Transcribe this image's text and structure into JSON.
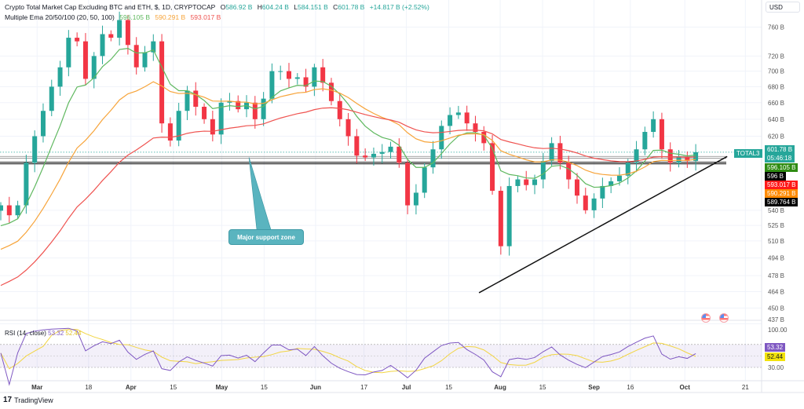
{
  "header": {
    "symbol_title": "Crypto Total Market Cap Excluding BTC and ETH, $, 1D, CRYPTOCAP",
    "ohlc": [
      {
        "label": "O",
        "value": "586.92 B"
      },
      {
        "label": "H",
        "value": "604.24 B"
      },
      {
        "label": "L",
        "value": "584.151 B"
      },
      {
        "label": "C",
        "value": "601.78 B"
      }
    ],
    "change": "+14.817 B (+2.52%)",
    "indicator_title": "Multiple Ema 20/50/100 (20, 50, 100)",
    "ema_values": [
      "596.105 B",
      "590.291 B",
      "593.017 B"
    ]
  },
  "axis": {
    "currency": "USD",
    "price_ticks": [
      "760 B",
      "720 B",
      "700 B",
      "680 B",
      "660 B",
      "640 B",
      "620 B",
      "540 B",
      "525 B",
      "510 B",
      "494 B",
      "478 B",
      "464 B",
      "450 B",
      "437 B"
    ],
    "price_tick_values": [
      760,
      720,
      700,
      680,
      660,
      640,
      620,
      540,
      525,
      510,
      494,
      478,
      464,
      450,
      437
    ],
    "rsi_ticks": [
      "100.00",
      "30.00"
    ],
    "date_labels": [
      {
        "label": "Mar",
        "day": 12,
        "bold": true
      },
      {
        "label": "18",
        "day": 29
      },
      {
        "label": "Apr",
        "day": 43,
        "bold": true
      },
      {
        "label": "15",
        "day": 57
      },
      {
        "label": "May",
        "day": 73,
        "bold": true
      },
      {
        "label": "15",
        "day": 87
      },
      {
        "label": "Jun",
        "day": 104,
        "bold": true
      },
      {
        "label": "17",
        "day": 120
      },
      {
        "label": "Jul",
        "day": 134,
        "bold": true
      },
      {
        "label": "15",
        "day": 148
      },
      {
        "label": "Aug",
        "day": 165,
        "bold": true
      },
      {
        "label": "15",
        "day": 179
      },
      {
        "label": "Sep",
        "day": 196,
        "bold": true
      },
      {
        "label": "16",
        "day": 208
      },
      {
        "label": "Oct",
        "day": 226,
        "bold": true
      },
      {
        "label": "21",
        "day": 246
      }
    ]
  },
  "price_badges": {
    "symbol": "TOTAL3",
    "last": "601.78 B",
    "countdown": "05:46:18",
    "ema20": "596.105 B",
    "hline_upper": "596 B",
    "ema100": "593.017 B",
    "ema50": "590.291 B",
    "hline_lower": "589.764 B",
    "rsi": "53.32",
    "rsi_ma": "52.44"
  },
  "annotation": {
    "text": "Major support zone"
  },
  "rsi_legend": {
    "title": "RSI (14, close)",
    "rsi": "53.32",
    "ma": "52.44"
  },
  "brand": "TradingView",
  "colors": {
    "up": "#26a69a",
    "down": "#f23645",
    "ema20": "#5fb85f",
    "ema50": "#f7a43a",
    "ema100": "#ef5350",
    "rsi": "#7e57c2",
    "rsi_ma": "#f2d543"
  },
  "chart_data": {
    "type": "candlestick",
    "title": "Crypto Total Market Cap Excluding BTC and ETH (TOTAL3), 1D",
    "ylabel": "USD (billions)",
    "yscale": "log",
    "ylim": [
      430,
      780
    ],
    "start_date": "Feb 18",
    "step_days": 2.8,
    "closes": [
      545,
      535,
      545,
      590,
      620,
      650,
      680,
      705,
      745,
      740,
      690,
      720,
      750,
      745,
      770,
      735,
      705,
      725,
      740,
      635,
      615,
      650,
      675,
      655,
      640,
      622,
      660,
      662,
      652,
      660,
      640,
      665,
      700,
      700,
      690,
      692,
      680,
      705,
      685,
      662,
      640,
      620,
      598,
      596,
      600,
      602,
      608,
      590,
      545,
      558,
      585,
      605,
      632,
      645,
      648,
      635,
      625,
      612,
      560,
      505,
      565,
      572,
      566,
      572,
      592,
      612,
      590,
      572,
      555,
      540,
      552,
      565,
      570,
      576,
      590,
      605,
      625,
      640,
      605,
      590,
      596,
      592,
      601.78
    ],
    "ema_seeds": {
      "ema20": 518,
      "ema50": 497,
      "ema100": 465
    },
    "horizontal_lines": [
      596,
      589.764
    ],
    "current_price": 601.78,
    "trendline": {
      "start": {
        "day": 158,
        "price": 463
      },
      "end": {
        "day": 240,
        "price": 597
      }
    },
    "annotation_anchor": {
      "day": 82,
      "price": 596
    },
    "rsi": {
      "period": 14,
      "last": 53.32,
      "ma_last": 52.44,
      "bands": [
        70,
        30
      ],
      "ylim": [
        0,
        100
      ]
    }
  }
}
